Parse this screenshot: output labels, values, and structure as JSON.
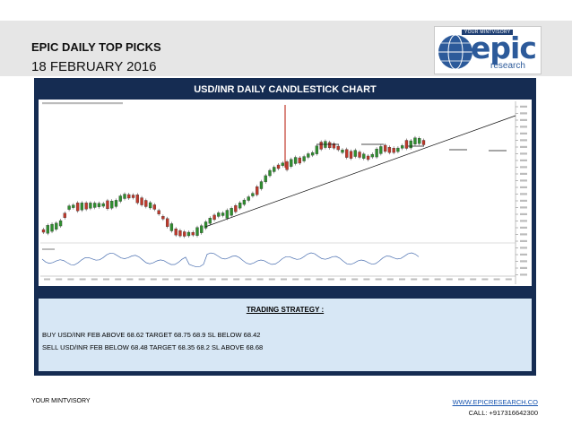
{
  "header": {
    "title": "EPIC DAILY TOP PICKS",
    "date": "18 FEBRUARY 2016",
    "logo": {
      "tagline": "YOUR MINTVISORY",
      "brand": "epic",
      "sub": "research"
    }
  },
  "chart_panel": {
    "title": "USD/INR DAILY CANDLESTICK CHART"
  },
  "strategy": {
    "title": "TRADING STRATEGY :",
    "buy": "BUY USD/INR FEB ABOVE 68.62 TARGET 68.75 68.9 SL BELOW 68.42",
    "sell": "SELL USD/INR FEB BELOW 68.48 TARGET 68.35 68.2 SL ABOVE 68.68"
  },
  "footer": {
    "left": "YOUR MINTVISORY",
    "url": "WWW.EPICRESEARCH.CO",
    "call": "CALL: +917316642300"
  },
  "colors": {
    "band": "#e6e6e6",
    "panel": "#152c52",
    "strategy_bg": "#d7e7f5",
    "bull": "#2f8f2f",
    "bear": "#c0392b"
  }
}
